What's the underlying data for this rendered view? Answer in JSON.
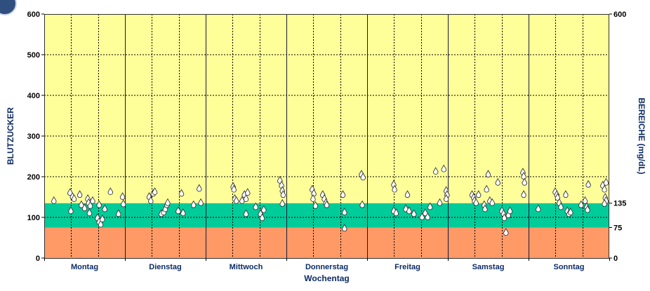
{
  "chart_data": {
    "type": "scatter",
    "x_title": "Wochentag",
    "y_title_left": "BLUTZUCKER",
    "y_title_right": "BEREICHE (mg/dL)",
    "categories": [
      "Montag",
      "Dienstag",
      "Mittwoch",
      "Donnerstag",
      "Freitag",
      "Samstag",
      "Sonntag"
    ],
    "ylim": [
      0,
      600
    ],
    "y_ticks": [
      "0",
      "100",
      "200",
      "300",
      "400",
      "500",
      "600"
    ],
    "right_ticks": [
      {
        "value": 0,
        "label": "0"
      },
      {
        "value": 75,
        "label": "75"
      },
      {
        "value": 135,
        "label": "135"
      },
      {
        "value": 600,
        "label": "600"
      }
    ],
    "ranges": [
      {
        "name": "low",
        "from": 0,
        "to": 75,
        "color": "#ff9966"
      },
      {
        "name": "target",
        "from": 75,
        "to": 135,
        "color": "#00cc99"
      },
      {
        "name": "high",
        "from": 135,
        "to": 600,
        "color": "#ffff99"
      }
    ],
    "x_domain": [
      0,
      7
    ],
    "series": [
      {
        "name": "Blutzucker",
        "points": [
          {
            "x": 0.12,
            "y": 140
          },
          {
            "x": 0.32,
            "y": 160
          },
          {
            "x": 0.35,
            "y": 150
          },
          {
            "x": 0.37,
            "y": 145
          },
          {
            "x": 0.33,
            "y": 115
          },
          {
            "x": 0.44,
            "y": 155
          },
          {
            "x": 0.46,
            "y": 130
          },
          {
            "x": 0.5,
            "y": 122
          },
          {
            "x": 0.54,
            "y": 145
          },
          {
            "x": 0.55,
            "y": 135
          },
          {
            "x": 0.57,
            "y": 128
          },
          {
            "x": 0.6,
            "y": 140
          },
          {
            "x": 0.56,
            "y": 110
          },
          {
            "x": 0.66,
            "y": 98
          },
          {
            "x": 0.68,
            "y": 88
          },
          {
            "x": 0.7,
            "y": 82
          },
          {
            "x": 0.72,
            "y": 95
          },
          {
            "x": 0.68,
            "y": 130
          },
          {
            "x": 0.75,
            "y": 120
          },
          {
            "x": 0.82,
            "y": 162
          },
          {
            "x": 0.92,
            "y": 108
          },
          {
            "x": 0.97,
            "y": 150
          },
          {
            "x": 0.98,
            "y": 132
          },
          {
            "x": 1.3,
            "y": 150
          },
          {
            "x": 1.32,
            "y": 140
          },
          {
            "x": 1.35,
            "y": 158
          },
          {
            "x": 1.37,
            "y": 162
          },
          {
            "x": 1.45,
            "y": 108
          },
          {
            "x": 1.48,
            "y": 112
          },
          {
            "x": 1.5,
            "y": 120
          },
          {
            "x": 1.52,
            "y": 130
          },
          {
            "x": 1.53,
            "y": 135
          },
          {
            "x": 1.66,
            "y": 115
          },
          {
            "x": 1.7,
            "y": 158
          },
          {
            "x": 1.72,
            "y": 110
          },
          {
            "x": 1.85,
            "y": 130
          },
          {
            "x": 1.92,
            "y": 170
          },
          {
            "x": 1.94,
            "y": 135
          },
          {
            "x": 2.34,
            "y": 175
          },
          {
            "x": 2.35,
            "y": 168
          },
          {
            "x": 2.36,
            "y": 145
          },
          {
            "x": 2.38,
            "y": 140
          },
          {
            "x": 2.45,
            "y": 140
          },
          {
            "x": 2.48,
            "y": 155
          },
          {
            "x": 2.5,
            "y": 145
          },
          {
            "x": 2.52,
            "y": 160
          },
          {
            "x": 2.5,
            "y": 108
          },
          {
            "x": 2.62,
            "y": 125
          },
          {
            "x": 2.68,
            "y": 108
          },
          {
            "x": 2.7,
            "y": 98
          },
          {
            "x": 2.72,
            "y": 118
          },
          {
            "x": 2.92,
            "y": 190
          },
          {
            "x": 2.94,
            "y": 178
          },
          {
            "x": 2.95,
            "y": 165
          },
          {
            "x": 2.96,
            "y": 155
          },
          {
            "x": 2.95,
            "y": 133
          },
          {
            "x": 3.32,
            "y": 168
          },
          {
            "x": 3.34,
            "y": 158
          },
          {
            "x": 3.33,
            "y": 145
          },
          {
            "x": 3.36,
            "y": 128
          },
          {
            "x": 3.45,
            "y": 155
          },
          {
            "x": 3.47,
            "y": 145
          },
          {
            "x": 3.49,
            "y": 135
          },
          {
            "x": 3.5,
            "y": 130
          },
          {
            "x": 3.7,
            "y": 155
          },
          {
            "x": 3.72,
            "y": 112
          },
          {
            "x": 3.72,
            "y": 72
          },
          {
            "x": 3.93,
            "y": 205
          },
          {
            "x": 3.95,
            "y": 198
          },
          {
            "x": 3.94,
            "y": 130
          },
          {
            "x": 4.33,
            "y": 180
          },
          {
            "x": 4.34,
            "y": 168
          },
          {
            "x": 4.33,
            "y": 115
          },
          {
            "x": 4.36,
            "y": 110
          },
          {
            "x": 4.48,
            "y": 120
          },
          {
            "x": 4.52,
            "y": 115
          },
          {
            "x": 4.5,
            "y": 155
          },
          {
            "x": 4.58,
            "y": 108
          },
          {
            "x": 4.68,
            "y": 100
          },
          {
            "x": 4.72,
            "y": 110
          },
          {
            "x": 4.75,
            "y": 100
          },
          {
            "x": 4.78,
            "y": 125
          },
          {
            "x": 4.85,
            "y": 212
          },
          {
            "x": 4.9,
            "y": 135
          },
          {
            "x": 4.95,
            "y": 218
          },
          {
            "x": 4.98,
            "y": 165
          },
          {
            "x": 4.99,
            "y": 155
          },
          {
            "x": 4.98,
            "y": 145
          },
          {
            "x": 5.3,
            "y": 155
          },
          {
            "x": 5.32,
            "y": 148
          },
          {
            "x": 5.33,
            "y": 140
          },
          {
            "x": 5.35,
            "y": 135
          },
          {
            "x": 5.38,
            "y": 155
          },
          {
            "x": 5.45,
            "y": 130
          },
          {
            "x": 5.46,
            "y": 120
          },
          {
            "x": 5.48,
            "y": 168
          },
          {
            "x": 5.5,
            "y": 205
          },
          {
            "x": 5.52,
            "y": 140
          },
          {
            "x": 5.55,
            "y": 135
          },
          {
            "x": 5.62,
            "y": 185
          },
          {
            "x": 5.67,
            "y": 115
          },
          {
            "x": 5.69,
            "y": 108
          },
          {
            "x": 5.7,
            "y": 98
          },
          {
            "x": 5.72,
            "y": 62
          },
          {
            "x": 5.75,
            "y": 105
          },
          {
            "x": 5.77,
            "y": 115
          },
          {
            "x": 5.93,
            "y": 210
          },
          {
            "x": 5.94,
            "y": 200
          },
          {
            "x": 5.95,
            "y": 185
          },
          {
            "x": 5.94,
            "y": 155
          },
          {
            "x": 6.12,
            "y": 120
          },
          {
            "x": 6.33,
            "y": 162
          },
          {
            "x": 6.35,
            "y": 155
          },
          {
            "x": 6.36,
            "y": 148
          },
          {
            "x": 6.38,
            "y": 135
          },
          {
            "x": 6.4,
            "y": 125
          },
          {
            "x": 6.46,
            "y": 155
          },
          {
            "x": 6.48,
            "y": 115
          },
          {
            "x": 6.5,
            "y": 108
          },
          {
            "x": 6.52,
            "y": 112
          },
          {
            "x": 6.65,
            "y": 130
          },
          {
            "x": 6.7,
            "y": 140
          },
          {
            "x": 6.72,
            "y": 125
          },
          {
            "x": 6.73,
            "y": 118
          },
          {
            "x": 6.74,
            "y": 180
          },
          {
            "x": 6.92,
            "y": 178
          },
          {
            "x": 6.94,
            "y": 168
          },
          {
            "x": 6.95,
            "y": 148
          },
          {
            "x": 6.96,
            "y": 140
          },
          {
            "x": 6.94,
            "y": 133
          },
          {
            "x": 6.96,
            "y": 185
          }
        ]
      }
    ]
  }
}
